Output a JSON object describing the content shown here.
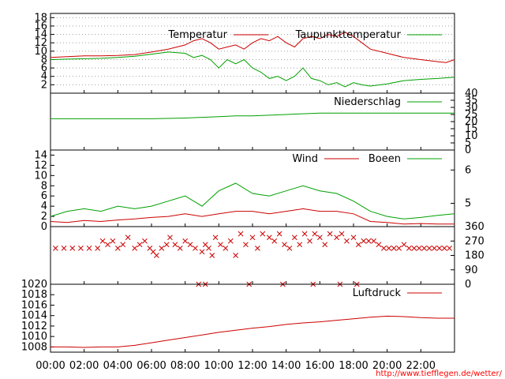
{
  "colors": {
    "red": "#cc0000",
    "green": "#00a000",
    "axis": "#000000",
    "grid": "#a0a0a0",
    "credit": "#ff0000"
  },
  "x_axis": {
    "ticks": [
      "00:00",
      "02:00",
      "04:00",
      "06:00",
      "08:00",
      "10:00",
      "12:00",
      "14:00",
      "16:00",
      "18:00",
      "20:00",
      "22:00"
    ],
    "range_hours": [
      0,
      24
    ]
  },
  "credit": "http://www.tiefflegen.de/wetter/",
  "chart_data": [
    {
      "type": "line",
      "panel": "temperature",
      "ylim": [
        0,
        19
      ],
      "yticks": [
        "2",
        "4",
        "6",
        "8",
        "10",
        "12",
        "14",
        "16",
        "18"
      ],
      "legend_placement": "top",
      "series": [
        {
          "name": "Temperatur",
          "color": "red",
          "x": [
            0,
            1,
            2,
            3,
            4,
            5,
            6,
            7,
            8,
            8.5,
            9,
            9.5,
            10,
            10.5,
            11,
            11.5,
            12,
            12.5,
            13,
            13.5,
            14,
            14.5,
            15,
            15.5,
            16,
            16.5,
            17,
            17.5,
            18,
            18.5,
            19,
            20,
            21,
            22,
            23,
            23.5,
            24
          ],
          "values": [
            8.5,
            8.7,
            8.9,
            8.9,
            9.0,
            9.2,
            9.8,
            10.5,
            11.5,
            12.5,
            13,
            12,
            10.5,
            11,
            11.5,
            10.5,
            12,
            13,
            12.5,
            13.5,
            12,
            11,
            13,
            13.5,
            13,
            14,
            13.5,
            14.5,
            13.5,
            12,
            10.5,
            9.5,
            8.5,
            8,
            7.5,
            7.3,
            8
          ]
        },
        {
          "name": "Taupunkttemperatur",
          "color": "green",
          "x": [
            0,
            1,
            2,
            3,
            4,
            5,
            6,
            7,
            8,
            8.5,
            9,
            9.5,
            10,
            10.5,
            11,
            11.5,
            12,
            12.5,
            13,
            13.5,
            14,
            14.5,
            15,
            15.5,
            16,
            16.5,
            17,
            17.5,
            18,
            18.5,
            19,
            20,
            21,
            22,
            23,
            24
          ],
          "values": [
            8,
            8.1,
            8.2,
            8.3,
            8.5,
            8.8,
            9.3,
            9.8,
            9.5,
            8.5,
            9,
            8,
            6,
            8,
            7,
            8,
            6,
            5,
            3.5,
            4,
            3,
            4,
            6,
            3.5,
            3,
            2,
            2.5,
            1.5,
            2.5,
            2,
            1.7,
            2.2,
            3,
            3.3,
            3.5,
            3.8
          ]
        }
      ]
    },
    {
      "type": "line",
      "panel": "precipitation",
      "y2lim": [
        0,
        40
      ],
      "y2ticks": [
        "0",
        "5",
        "10",
        "15",
        "20",
        "25",
        "30",
        "35",
        "40"
      ],
      "legend_placement": "top-right",
      "series": [
        {
          "name": "Niederschlag",
          "color": "green",
          "x": [
            0,
            2,
            4,
            6,
            8,
            9,
            10,
            11,
            12,
            13,
            14,
            15,
            16,
            17,
            18,
            20,
            22,
            24
          ],
          "values": [
            22,
            22,
            22,
            22,
            22.5,
            23,
            23.5,
            24,
            24,
            24.5,
            25,
            25.5,
            26,
            26,
            26,
            26,
            26,
            26
          ]
        }
      ]
    },
    {
      "type": "line",
      "panel": "wind",
      "ylim": [
        0,
        15
      ],
      "yticks": [
        "0",
        "2",
        "4",
        "6",
        "8",
        "10",
        "12",
        "14"
      ],
      "y2ticks": [
        "5",
        "6"
      ],
      "legend_placement": "top-right",
      "series": [
        {
          "name": "Wind",
          "color": "red",
          "x": [
            0,
            1,
            2,
            3,
            4,
            5,
            6,
            7,
            8,
            9,
            10,
            11,
            12,
            13,
            14,
            15,
            16,
            17,
            18,
            19,
            20,
            21,
            22,
            23,
            24
          ],
          "values": [
            1,
            0.8,
            1.2,
            1,
            1.3,
            1.5,
            1.8,
            2,
            2.5,
            2,
            2.5,
            3,
            3,
            2.5,
            3,
            3.5,
            3,
            3,
            2.5,
            1,
            0.8,
            0.5,
            0.6,
            0.5,
            0.5
          ]
        },
        {
          "name": "Boeen",
          "color": "green",
          "x": [
            0,
            1,
            2,
            3,
            4,
            5,
            6,
            7,
            8,
            9,
            10,
            11,
            12,
            13,
            14,
            15,
            16,
            17,
            18,
            19,
            20,
            21,
            22,
            23,
            24
          ],
          "values": [
            2,
            3,
            3.5,
            3,
            4,
            3.5,
            4,
            5,
            6,
            4,
            7,
            8.5,
            6.5,
            6,
            7,
            8,
            7,
            6.5,
            5,
            3,
            2,
            1.5,
            1.8,
            2.2,
            2.5
          ]
        }
      ]
    },
    {
      "type": "scatter",
      "panel": "wind_direction",
      "y2lim": [
        0,
        360
      ],
      "y2ticks": [
        "0",
        "90",
        "180",
        "270",
        "360"
      ],
      "points": [
        [
          0.3,
          225
        ],
        [
          0.8,
          225
        ],
        [
          1.3,
          225
        ],
        [
          1.8,
          225
        ],
        [
          2.3,
          225
        ],
        [
          2.8,
          225
        ],
        [
          3.1,
          270
        ],
        [
          3.4,
          248
        ],
        [
          3.7,
          270
        ],
        [
          4,
          225
        ],
        [
          4.3,
          248
        ],
        [
          4.6,
          292
        ],
        [
          5,
          225
        ],
        [
          5.3,
          248
        ],
        [
          5.6,
          270
        ],
        [
          5.9,
          225
        ],
        [
          6.1,
          203
        ],
        [
          6.3,
          180
        ],
        [
          6.6,
          225
        ],
        [
          6.9,
          248
        ],
        [
          7.1,
          292
        ],
        [
          7.4,
          248
        ],
        [
          7.7,
          225
        ],
        [
          8,
          270
        ],
        [
          8.3,
          248
        ],
        [
          8.6,
          225
        ],
        [
          8.8,
          0
        ],
        [
          9,
          203
        ],
        [
          9.2,
          248
        ],
        [
          9.4,
          225
        ],
        [
          9.6,
          180
        ],
        [
          9.8,
          292
        ],
        [
          10.1,
          248
        ],
        [
          10.4,
          225
        ],
        [
          10.7,
          270
        ],
        [
          11,
          180
        ],
        [
          11.3,
          315
        ],
        [
          11.6,
          248
        ],
        [
          12,
          292
        ],
        [
          12.3,
          225
        ],
        [
          12.6,
          315
        ],
        [
          13,
          292
        ],
        [
          13.3,
          270
        ],
        [
          13.6,
          315
        ],
        [
          13.9,
          248
        ],
        [
          14.2,
          225
        ],
        [
          14.5,
          292
        ],
        [
          14.8,
          248
        ],
        [
          15.1,
          315
        ],
        [
          15.4,
          270
        ],
        [
          15.7,
          315
        ],
        [
          16,
          292
        ],
        [
          16.3,
          248
        ],
        [
          16.6,
          315
        ],
        [
          17,
          292
        ],
        [
          17.3,
          315
        ],
        [
          17.6,
          270
        ],
        [
          18,
          292
        ],
        [
          18.3,
          248
        ],
        [
          18.6,
          270
        ],
        [
          18.9,
          270
        ],
        [
          19.2,
          270
        ],
        [
          19.5,
          248
        ],
        [
          19.8,
          225
        ],
        [
          20.1,
          225
        ],
        [
          20.4,
          225
        ],
        [
          20.7,
          225
        ],
        [
          21,
          248
        ],
        [
          21.3,
          225
        ],
        [
          21.6,
          225
        ],
        [
          21.9,
          225
        ],
        [
          22.2,
          225
        ],
        [
          22.5,
          225
        ],
        [
          22.8,
          225
        ],
        [
          23.1,
          225
        ],
        [
          23.4,
          225
        ],
        [
          23.7,
          225
        ],
        [
          9.2,
          0
        ],
        [
          11.8,
          0
        ],
        [
          13.8,
          0
        ],
        [
          15.6,
          0
        ],
        [
          17.2,
          0
        ],
        [
          18.2,
          0
        ]
      ]
    },
    {
      "type": "line",
      "panel": "pressure",
      "ylim": [
        1007,
        1020
      ],
      "yticks": [
        "1008",
        "1010",
        "1012",
        "1014",
        "1016",
        "1018",
        "1020"
      ],
      "legend_placement": "top-right",
      "series": [
        {
          "name": "Luftdruck",
          "color": "red",
          "x": [
            0,
            1,
            2,
            3,
            4,
            5,
            6,
            7,
            8,
            9,
            10,
            11,
            12,
            13,
            14,
            15,
            16,
            17,
            18,
            19,
            20,
            21,
            22,
            23,
            24
          ],
          "values": [
            1008,
            1008,
            1007.9,
            1008,
            1008,
            1008.3,
            1008.8,
            1009.3,
            1009.8,
            1010.3,
            1010.8,
            1011.2,
            1011.6,
            1011.9,
            1012.3,
            1012.6,
            1012.8,
            1013.1,
            1013.4,
            1013.7,
            1013.9,
            1013.8,
            1013.6,
            1013.5,
            1013.5
          ]
        }
      ]
    }
  ]
}
